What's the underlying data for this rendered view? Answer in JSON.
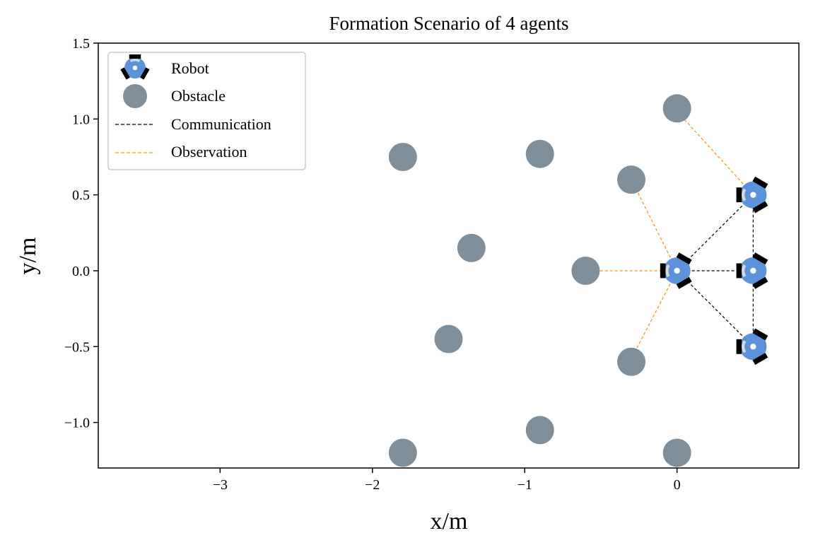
{
  "chart_data": {
    "type": "scatter",
    "title": "Formation Scenario of 4 agents",
    "xlabel": "x/m",
    "ylabel": "y/m",
    "xlim": [
      -3.8,
      0.8
    ],
    "ylim": [
      -1.3,
      1.5
    ],
    "xticks": [
      -3,
      -2,
      -1,
      0
    ],
    "xtick_labels": [
      "−3",
      "−2",
      "−1",
      "0"
    ],
    "yticks": [
      -1.0,
      -0.5,
      0.0,
      0.5,
      1.0,
      1.5
    ],
    "ytick_labels": [
      "−1.0",
      "−0.5",
      "0.0",
      "0.5",
      "1.0",
      "1.5"
    ],
    "grid": false,
    "legend_position": "top-left",
    "legend": [
      "Robot",
      "Obstacle",
      "Communication",
      "Observation"
    ],
    "colors": {
      "robot": "#5b93db",
      "obstacle": "#7f8e9b",
      "communication": "#000000",
      "observation": "#ff8c00"
    },
    "robots": [
      {
        "x": 0.0,
        "y": 0.0,
        "heading_deg": 0
      },
      {
        "x": 0.5,
        "y": 0.5,
        "heading_deg": 0
      },
      {
        "x": 0.5,
        "y": 0.0,
        "heading_deg": 0
      },
      {
        "x": 0.5,
        "y": -0.5,
        "heading_deg": 0
      }
    ],
    "obstacles": [
      {
        "x": 0.0,
        "y": 1.07
      },
      {
        "x": -0.3,
        "y": 0.6
      },
      {
        "x": -0.9,
        "y": 0.77
      },
      {
        "x": -1.8,
        "y": 0.75
      },
      {
        "x": -1.35,
        "y": 0.15
      },
      {
        "x": -0.6,
        "y": 0.0
      },
      {
        "x": -1.5,
        "y": -0.45
      },
      {
        "x": -0.3,
        "y": -0.6
      },
      {
        "x": -0.9,
        "y": -1.05
      },
      {
        "x": -1.8,
        "y": -1.2
      },
      {
        "x": 0.0,
        "y": -1.2
      }
    ],
    "communication_links": [
      {
        "from": [
          0.0,
          0.0
        ],
        "to": [
          0.5,
          0.5
        ]
      },
      {
        "from": [
          0.0,
          0.0
        ],
        "to": [
          0.5,
          0.0
        ]
      },
      {
        "from": [
          0.0,
          0.0
        ],
        "to": [
          0.5,
          -0.5
        ]
      },
      {
        "from": [
          0.5,
          0.5
        ],
        "to": [
          0.5,
          -0.5
        ]
      }
    ],
    "observation_links": [
      {
        "from": [
          0.5,
          0.5
        ],
        "to": [
          0.0,
          1.05
        ]
      },
      {
        "from": [
          0.0,
          0.0
        ],
        "to": [
          -0.3,
          0.6
        ]
      },
      {
        "from": [
          0.0,
          0.0
        ],
        "to": [
          -0.6,
          0.0
        ]
      },
      {
        "from": [
          0.0,
          0.0
        ],
        "to": [
          -0.3,
          -0.58
        ]
      }
    ]
  }
}
